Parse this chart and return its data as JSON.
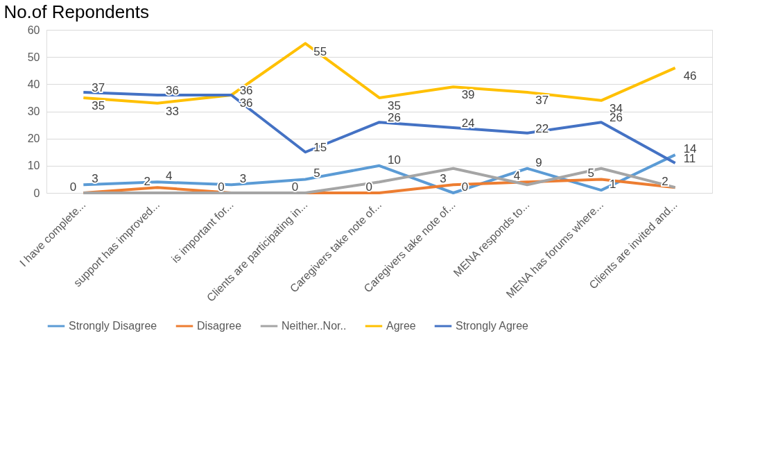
{
  "chart_data": {
    "type": "line",
    "title": "No.of Repondents",
    "categories": [
      "I have complete...",
      "support has improved...",
      "is important for...",
      "Clients are participating in...",
      "Caregivers take note of...",
      "Caregivers take note of...",
      "MENA responds to...",
      "MENA has forums where...",
      "Clients are invited and..."
    ],
    "series": [
      {
        "name": "Strongly Disagree",
        "color": "#5b9bd5",
        "values": [
          3,
          4,
          3,
          5,
          10,
          0,
          9,
          1,
          14
        ],
        "value_labels": [
          "3",
          "4",
          "3",
          "5",
          "10",
          "0",
          "9",
          "1",
          "14"
        ]
      },
      {
        "name": "Disagree",
        "color": "#ed7d31",
        "values": [
          0,
          2,
          0,
          0,
          0,
          3,
          4,
          5,
          2
        ],
        "value_labels": [
          "0",
          "2",
          "0",
          "0",
          "0",
          "3",
          "4",
          "5",
          "2"
        ]
      },
      {
        "name": "Neither..Nor..",
        "color": "#a5a5a5",
        "values": [
          0,
          0,
          0,
          0,
          4,
          9,
          3,
          9,
          2
        ]
      },
      {
        "name": "Agree",
        "color": "#ffc000",
        "values": [
          35,
          33,
          36,
          55,
          35,
          39,
          37,
          34,
          46
        ],
        "value_labels": [
          "35",
          "33",
          "36",
          "55",
          "35",
          "39",
          "37",
          "34",
          "46"
        ]
      },
      {
        "name": "Strongly Agree",
        "color": "#4472c4",
        "values": [
          37,
          36,
          36,
          15,
          26,
          24,
          22,
          26,
          11
        ],
        "value_labels": [
          "37",
          "36",
          "36",
          "15",
          "26",
          "24",
          "22",
          "26",
          "11"
        ]
      }
    ],
    "ylim": [
      0,
      60
    ],
    "yticks": [
      0,
      10,
      20,
      30,
      40,
      50,
      60
    ],
    "grid": "y",
    "legend": "bottom",
    "marker": "none",
    "line_style": "solid"
  }
}
